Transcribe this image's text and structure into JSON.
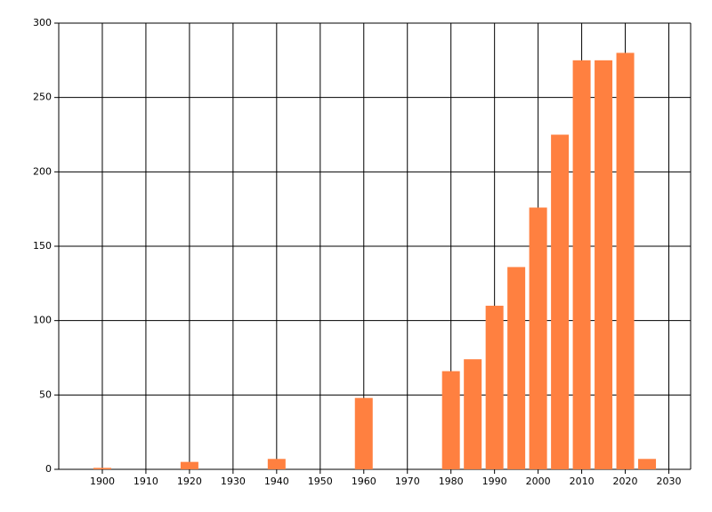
{
  "chart_data": {
    "type": "bar",
    "x": [
      1900,
      1920,
      1940,
      1960,
      1980,
      1985,
      1990,
      1995,
      2000,
      2005,
      2010,
      2015,
      2020,
      2025
    ],
    "values": [
      1,
      5,
      7,
      48,
      66,
      74,
      110,
      136,
      176,
      225,
      275,
      275,
      280,
      7
    ],
    "color": "#ff8040",
    "xlim": [
      1890,
      2035
    ],
    "xticks": [
      1900,
      1910,
      1920,
      1930,
      1940,
      1950,
      1960,
      1970,
      1980,
      1990,
      2000,
      2010,
      2020,
      2030
    ],
    "ylim": [
      0,
      300
    ],
    "yticks": [
      0,
      50,
      100,
      150,
      200,
      250,
      300
    ],
    "grid": true
  }
}
